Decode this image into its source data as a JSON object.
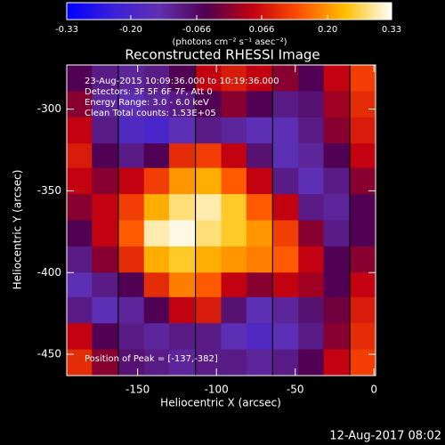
{
  "chart_data": {
    "type": "heatmap",
    "title": "Reconstructed RHESSI Image",
    "annotations": [
      "23-Aug-2015 10:09:36.000 to 10:19:36.000",
      "Detectors: 3F 5F 6F 7F, Att 0",
      "Energy Range: 3.0 - 6.0 keV",
      "Clean     Total counts: 1.53E+05",
      "Position of Peak = [-137,-382]"
    ],
    "footer": "12-Aug-2017 08:02",
    "x_label": "Heliocentric X (arcsec)",
    "y_label": "Heliocentric Y (arcsec)",
    "colorbar_label": "(photons cm⁻² s⁻¹ asec⁻²)",
    "clim": [
      -0.33,
      0.33
    ],
    "cticks": [
      -0.33,
      {
        "value": -0.2,
        "label": "-0.20"
      },
      -0.066,
      0.066,
      {
        "value": 0.2,
        "label": "0.20"
      },
      0.33
    ],
    "colormap": [
      "#0000ff",
      "#3a20d8",
      "#6030b0",
      "#500050",
      "#c00010",
      "#ff5000",
      "#ffc000",
      "#ffffff"
    ],
    "xlim": [
      -195,
      1
    ],
    "ylim": [
      -463,
      -273
    ],
    "xticks": [
      -150,
      -100,
      -50,
      0
    ],
    "yticks": [
      -300,
      -350,
      -400,
      -450
    ],
    "x": [
      -187,
      -171,
      -154,
      -138,
      -122,
      -105,
      -89,
      -73,
      -56,
      -40,
      -24,
      -7
    ],
    "y": [
      -281,
      -297,
      -313,
      -329,
      -344,
      -360,
      -376,
      -392,
      -408,
      -423,
      -439,
      -455
    ],
    "z": [
      [
        -0.05,
        -0.1,
        -0.12,
        -0.1,
        -0.05,
        0.05,
        0.08,
        0.05,
        0.0,
        -0.05,
        0.05,
        0.12
      ],
      [
        0.0,
        -0.12,
        -0.15,
        -0.12,
        -0.1,
        -0.05,
        0.0,
        -0.05,
        -0.1,
        -0.08,
        0.02,
        0.1
      ],
      [
        0.05,
        -0.1,
        -0.18,
        -0.2,
        -0.15,
        -0.1,
        -0.12,
        -0.15,
        -0.15,
        -0.1,
        0.0,
        0.08
      ],
      [
        0.08,
        -0.05,
        -0.1,
        -0.05,
        0.1,
        0.12,
        0.05,
        -0.08,
        -0.15,
        -0.12,
        -0.05,
        0.05
      ],
      [
        0.05,
        0.0,
        0.05,
        0.12,
        0.2,
        0.22,
        0.15,
        0.05,
        -0.1,
        -0.15,
        -0.1,
        0.0
      ],
      [
        0.0,
        0.05,
        0.12,
        0.22,
        0.28,
        0.3,
        0.25,
        0.15,
        0.05,
        -0.1,
        -0.12,
        -0.05
      ],
      [
        -0.05,
        0.05,
        0.15,
        0.3,
        0.32,
        0.28,
        0.25,
        0.2,
        0.12,
        0.0,
        -0.1,
        -0.05
      ],
      [
        -0.1,
        0.0,
        0.1,
        0.22,
        0.25,
        0.22,
        0.2,
        0.18,
        0.15,
        0.05,
        -0.05,
        0.0
      ],
      [
        -0.15,
        -0.1,
        -0.05,
        0.1,
        0.18,
        0.15,
        0.05,
        0.0,
        0.05,
        0.02,
        -0.05,
        0.05
      ],
      [
        -0.1,
        -0.15,
        -0.12,
        -0.05,
        0.05,
        0.08,
        -0.08,
        -0.15,
        -0.12,
        -0.08,
        -0.02,
        0.08
      ],
      [
        0.05,
        -0.05,
        -0.1,
        -0.12,
        -0.1,
        -0.1,
        -0.15,
        -0.18,
        -0.15,
        -0.1,
        0.0,
        0.1
      ],
      [
        0.1,
        0.0,
        -0.08,
        -0.1,
        -0.12,
        -0.1,
        -0.1,
        -0.12,
        -0.1,
        -0.05,
        0.05,
        0.12
      ]
    ]
  }
}
